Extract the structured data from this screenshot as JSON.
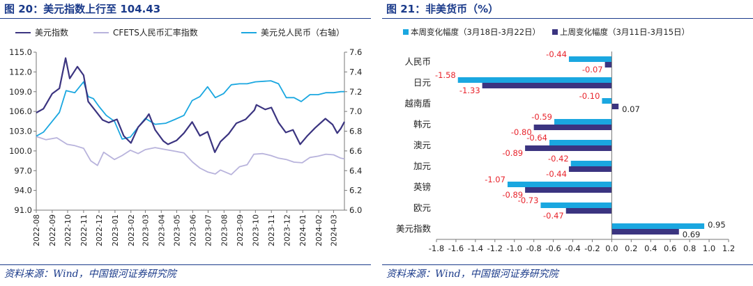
{
  "left": {
    "title": "图 20：美元指数上行至 104.43",
    "source": "资料来源：Wind，中国银河证券研究院",
    "chart_data": {
      "type": "line",
      "legend": {
        "placement": "top"
      },
      "grid": false,
      "x_ticks": [
        "2022-08",
        "2022-09",
        "2022-10",
        "2022-11",
        "2022-12",
        "2023-01",
        "2023-02",
        "2023-03",
        "2023-04",
        "2023-05",
        "2023-06",
        "2023-07",
        "2023-08",
        "2023-09",
        "2023-10",
        "2023-11",
        "2023-12",
        "2024-01",
        "2024-02",
        "2024-03"
      ],
      "x_range": [
        "2022-08-01",
        "2024-03-22"
      ],
      "y_left": {
        "min": 91.0,
        "max": 115.0,
        "ticks": [
          "115.0",
          "112.0",
          "109.0",
          "106.0",
          "103.0",
          "100.0",
          "97.0",
          "94.0",
          "91.0"
        ]
      },
      "y_right": {
        "min": 6.0,
        "max": 7.6,
        "ticks": [
          "7.6",
          "7.4",
          "7.2",
          "7.0",
          "6.8",
          "6.6",
          "6.4",
          "6.2",
          "6.0"
        ]
      },
      "series": [
        {
          "name": "美元指数",
          "axis": "left",
          "color": "#3b3480",
          "points": [
            [
              "2022-08-01",
              105.8
            ],
            [
              "2022-08-15",
              106.4
            ],
            [
              "2022-09-01",
              108.7
            ],
            [
              "2022-09-15",
              109.5
            ],
            [
              "2022-09-27",
              114.1
            ],
            [
              "2022-10-05",
              111.0
            ],
            [
              "2022-10-20",
              112.8
            ],
            [
              "2022-11-01",
              111.5
            ],
            [
              "2022-11-10",
              107.5
            ],
            [
              "2022-11-25",
              106.0
            ],
            [
              "2022-12-08",
              104.7
            ],
            [
              "2022-12-20",
              104.3
            ],
            [
              "2023-01-05",
              104.8
            ],
            [
              "2023-01-18",
              102.3
            ],
            [
              "2023-02-01",
              101.2
            ],
            [
              "2023-02-15",
              103.6
            ],
            [
              "2023-03-01",
              104.8
            ],
            [
              "2023-03-08",
              105.6
            ],
            [
              "2023-03-20",
              103.2
            ],
            [
              "2023-04-05",
              101.5
            ],
            [
              "2023-04-14",
              101.0
            ],
            [
              "2023-05-01",
              101.6
            ],
            [
              "2023-05-15",
              102.7
            ],
            [
              "2023-05-31",
              104.4
            ],
            [
              "2023-06-15",
              102.3
            ],
            [
              "2023-06-30",
              102.9
            ],
            [
              "2023-07-14",
              99.8
            ],
            [
              "2023-07-25",
              101.4
            ],
            [
              "2023-08-10",
              102.6
            ],
            [
              "2023-08-25",
              104.2
            ],
            [
              "2023-09-12",
              104.8
            ],
            [
              "2023-09-29",
              106.2
            ],
            [
              "2023-10-03",
              107.0
            ],
            [
              "2023-10-20",
              106.3
            ],
            [
              "2023-11-01",
              106.6
            ],
            [
              "2023-11-15",
              104.3
            ],
            [
              "2023-11-29",
              102.8
            ],
            [
              "2023-12-13",
              103.2
            ],
            [
              "2023-12-27",
              101.0
            ],
            [
              "2024-01-10",
              102.3
            ],
            [
              "2024-01-25",
              103.5
            ],
            [
              "2024-02-14",
              104.9
            ],
            [
              "2024-02-28",
              104.0
            ],
            [
              "2024-03-08",
              102.7
            ],
            [
              "2024-03-15",
              103.4
            ],
            [
              "2024-03-22",
              104.43
            ]
          ]
        },
        {
          "name": "CFETS人民币汇率指数",
          "axis": "left",
          "color": "#b8b3dc",
          "points": [
            [
              "2022-08-01",
              102.2
            ],
            [
              "2022-08-20",
              101.7
            ],
            [
              "2022-09-10",
              102.0
            ],
            [
              "2022-09-30",
              101.0
            ],
            [
              "2022-10-15",
              100.8
            ],
            [
              "2022-11-01",
              100.4
            ],
            [
              "2022-11-15",
              98.5
            ],
            [
              "2022-11-28",
              97.8
            ],
            [
              "2022-12-10",
              99.8
            ],
            [
              "2022-12-31",
              98.7
            ],
            [
              "2023-01-15",
              99.3
            ],
            [
              "2023-01-31",
              100.1
            ],
            [
              "2023-02-15",
              99.6
            ],
            [
              "2023-03-01",
              100.2
            ],
            [
              "2023-03-20",
              100.5
            ],
            [
              "2023-04-10",
              100.2
            ],
            [
              "2023-05-01",
              99.9
            ],
            [
              "2023-05-15",
              99.7
            ],
            [
              "2023-06-01",
              98.3
            ],
            [
              "2023-06-15",
              97.4
            ],
            [
              "2023-06-30",
              96.8
            ],
            [
              "2023-07-15",
              96.5
            ],
            [
              "2023-07-25",
              97.1
            ],
            [
              "2023-08-15",
              96.4
            ],
            [
              "2023-08-31",
              97.6
            ],
            [
              "2023-09-15",
              97.9
            ],
            [
              "2023-09-28",
              99.5
            ],
            [
              "2023-10-15",
              99.6
            ],
            [
              "2023-10-31",
              99.3
            ],
            [
              "2023-11-15",
              98.9
            ],
            [
              "2023-11-30",
              98.7
            ],
            [
              "2023-12-15",
              98.3
            ],
            [
              "2023-12-31",
              98.2
            ],
            [
              "2024-01-15",
              99.0
            ],
            [
              "2024-01-31",
              99.2
            ],
            [
              "2024-02-15",
              99.5
            ],
            [
              "2024-03-01",
              99.4
            ],
            [
              "2024-03-15",
              98.9
            ],
            [
              "2024-03-22",
              98.8
            ]
          ]
        },
        {
          "name": "美元兑人民币（右轴）",
          "axis": "right",
          "color": "#1aa7e0",
          "points": [
            [
              "2022-08-01",
              6.75
            ],
            [
              "2022-08-15",
              6.79
            ],
            [
              "2022-09-01",
              6.9
            ],
            [
              "2022-09-15",
              6.99
            ],
            [
              "2022-09-28",
              7.21
            ],
            [
              "2022-10-15",
              7.19
            ],
            [
              "2022-11-01",
              7.3
            ],
            [
              "2022-11-10",
              7.15
            ],
            [
              "2022-11-20",
              7.13
            ],
            [
              "2022-12-01",
              7.05
            ],
            [
              "2022-12-15",
              6.96
            ],
            [
              "2022-12-31",
              6.9
            ],
            [
              "2023-01-15",
              6.72
            ],
            [
              "2023-01-31",
              6.74
            ],
            [
              "2023-02-15",
              6.84
            ],
            [
              "2023-03-01",
              6.93
            ],
            [
              "2023-03-20",
              6.87
            ],
            [
              "2023-04-10",
              6.88
            ],
            [
              "2023-04-28",
              6.92
            ],
            [
              "2023-05-15",
              6.96
            ],
            [
              "2023-05-31",
              7.11
            ],
            [
              "2023-06-15",
              7.15
            ],
            [
              "2023-06-30",
              7.25
            ],
            [
              "2023-07-15",
              7.14
            ],
            [
              "2023-07-31",
              7.18
            ],
            [
              "2023-08-15",
              7.27
            ],
            [
              "2023-08-31",
              7.28
            ],
            [
              "2023-09-15",
              7.28
            ],
            [
              "2023-10-01",
              7.3
            ],
            [
              "2023-10-31",
              7.31
            ],
            [
              "2023-11-15",
              7.28
            ],
            [
              "2023-11-30",
              7.14
            ],
            [
              "2023-12-15",
              7.14
            ],
            [
              "2023-12-29",
              7.1
            ],
            [
              "2024-01-15",
              7.17
            ],
            [
              "2024-01-31",
              7.17
            ],
            [
              "2024-02-15",
              7.19
            ],
            [
              "2024-03-01",
              7.19
            ],
            [
              "2024-03-15",
              7.2
            ],
            [
              "2024-03-22",
              7.2
            ]
          ]
        }
      ]
    }
  },
  "right": {
    "title": "图 21：非美货币（%）",
    "source": "资料来源：Wind，中国银河证券研究院",
    "chart_data": {
      "type": "bar",
      "orientation": "horizontal",
      "legend": {
        "placement": "top"
      },
      "grid": false,
      "categories": [
        "人民币",
        "日元",
        "越南盾",
        "韩元",
        "澳元",
        "加元",
        "英镑",
        "欧元",
        "美元指数"
      ],
      "series": [
        {
          "name": "本周变化幅度（3月18日-3月22日）",
          "color": "#1aa7e0",
          "values": [
            -0.44,
            -1.58,
            -0.1,
            -0.59,
            -0.64,
            -0.42,
            -1.07,
            -0.73,
            0.95
          ],
          "labels": [
            "-0.44",
            "-1.58",
            "-0.10",
            "-0.59",
            "-0.64",
            "-0.42",
            "-1.07",
            "-0.73",
            "0.95"
          ]
        },
        {
          "name": "上周变化幅度（3月11日-3月15日）",
          "color": "#3b3480",
          "values": [
            -0.07,
            -1.33,
            0.07,
            -0.8,
            -0.89,
            -0.44,
            -0.89,
            -0.47,
            0.69
          ],
          "labels": [
            "-0.07",
            "-1.33",
            "0.07",
            "-0.80",
            "-0.89",
            "-0.44",
            "-0.89",
            "-0.47",
            "0.69"
          ]
        }
      ],
      "label_colors": {
        "negative": "#e8242c",
        "positive": "#222222"
      },
      "x_range": [
        -1.8,
        1.2
      ],
      "x_ticks": [
        "-1.8",
        "-1.6",
        "-1.4",
        "-1.2",
        "-1.0",
        "-0.8",
        "-0.6",
        "-0.4",
        "-0.2",
        "0.0",
        "0.2",
        "0.4",
        "0.6",
        "0.8",
        "1.0",
        "1.2"
      ]
    }
  }
}
